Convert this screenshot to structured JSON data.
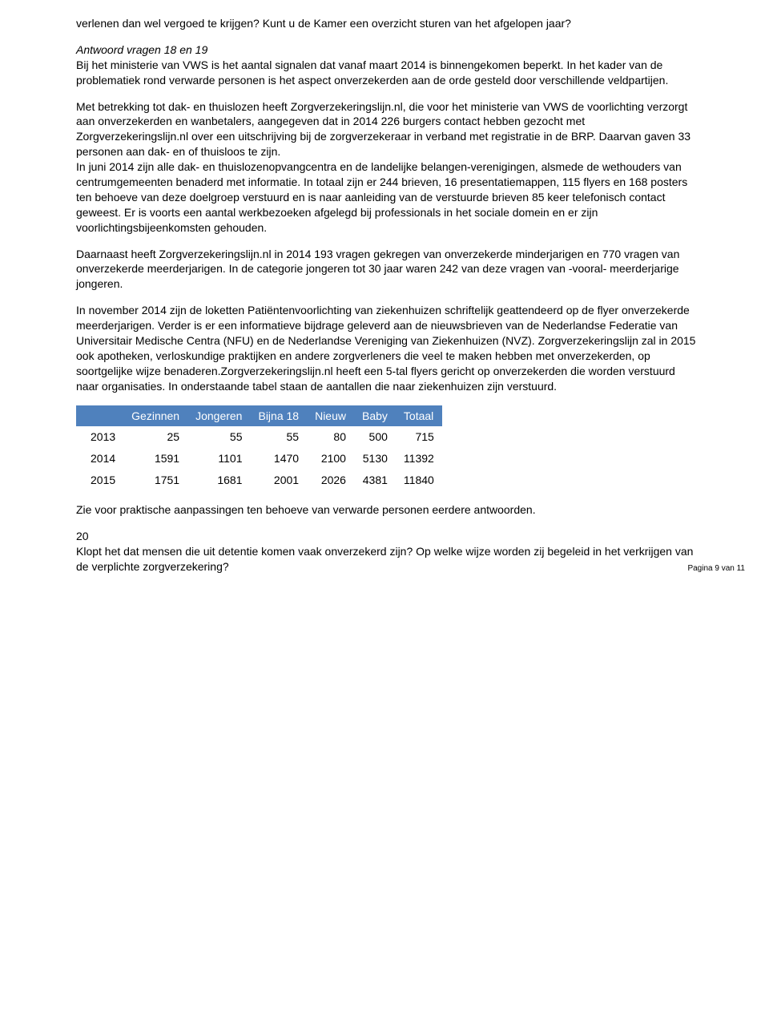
{
  "para1": "verlenen dan wel vergoed te krijgen? Kunt u de Kamer een overzicht sturen van het afgelopen jaar?",
  "answerHeading": "Antwoord vragen 18 en 19",
  "para2": "Bij het ministerie van VWS is het aantal signalen dat vanaf maart 2014 is binnengekomen beperkt. In het kader van de problematiek rond verwarde personen is het aspect onverzekerden aan de orde gesteld door verschillende veldpartijen.",
  "para3": "Met betrekking tot dak- en thuislozen heeft Zorgverzekeringslijn.nl, die voor het ministerie van VWS de voorlichting verzorgt aan onverzekerden en wanbetalers, aangegeven dat in 2014 226 burgers contact hebben gezocht met Zorgverzekeringslijn.nl over een uitschrijving bij de zorgverzekeraar in verband met registratie in de BRP. Daarvan gaven 33 personen aan dak- en of thuisloos te zijn.",
  "para3b": "In juni 2014 zijn alle dak- en thuislozenopvangcentra en de landelijke belangen-verenigingen, alsmede de wethouders van centrumgemeenten benaderd met informatie. In totaal zijn er 244 brieven, 16 presentatiemappen, 115 flyers en 168 posters ten behoeve van deze doelgroep verstuurd en is naar aanleiding van de verstuurde brieven 85 keer telefonisch contact geweest. Er is voorts een aantal werkbezoeken afgelegd bij professionals in het sociale domein en er zijn voorlichtingsbijeenkomsten gehouden.",
  "para4": "Daarnaast heeft Zorgverzekeringslijn.nl in 2014 193 vragen gekregen van onverzekerde minderjarigen en 770 vragen van onverzekerde meerderjarigen. In de categorie jongeren tot 30 jaar waren 242 van deze vragen van -vooral- meerderjarige jongeren.",
  "para5": "In november 2014 zijn de loketten Patiëntenvoorlichting van ziekenhuizen schriftelijk geattendeerd op de flyer onverzekerde meerderjarigen. Verder is er een informatieve bijdrage geleverd aan de nieuwsbrieven van de Nederlandse Federatie van Universitair Medische Centra (NFU) en de Nederlandse Vereniging van Ziekenhuizen (NVZ). Zorgverzekeringslijn zal in 2015 ook apotheken, verloskundige praktijken en andere zorgverleners die veel te maken hebben met onverzekerden, op soortgelijke wijze benaderen.Zorgverzekeringslijn.nl heeft een 5-tal flyers gericht op onverzekerden die worden verstuurd naar organisaties. In onderstaande tabel staan de aantallen die naar ziekenhuizen zijn verstuurd.",
  "table": {
    "columns": [
      "",
      "Gezinnen",
      "Jongeren",
      "Bijna 18",
      "Nieuw",
      "Baby",
      "Totaal"
    ],
    "rows": [
      [
        "2013",
        "25",
        "55",
        "55",
        "80",
        "500",
        "715"
      ],
      [
        "2014",
        "1591",
        "1101",
        "1470",
        "2100",
        "5130",
        "11392"
      ],
      [
        "2015",
        "1751",
        "1681",
        "2001",
        "2026",
        "4381",
        "11840"
      ]
    ],
    "header_bg": "#4f81bd",
    "header_color": "#ffffff"
  },
  "para6": "Zie voor praktische aanpassingen ten behoeve van verwarde personen eerdere antwoorden.",
  "qNum": "20",
  "qText": "Klopt het dat mensen die uit detentie komen vaak onverzekerd zijn? Op welke wijze worden zij begeleid in het verkrijgen van de verplichte zorgverzekering?",
  "pageNum": "Pagina 9 van 11"
}
